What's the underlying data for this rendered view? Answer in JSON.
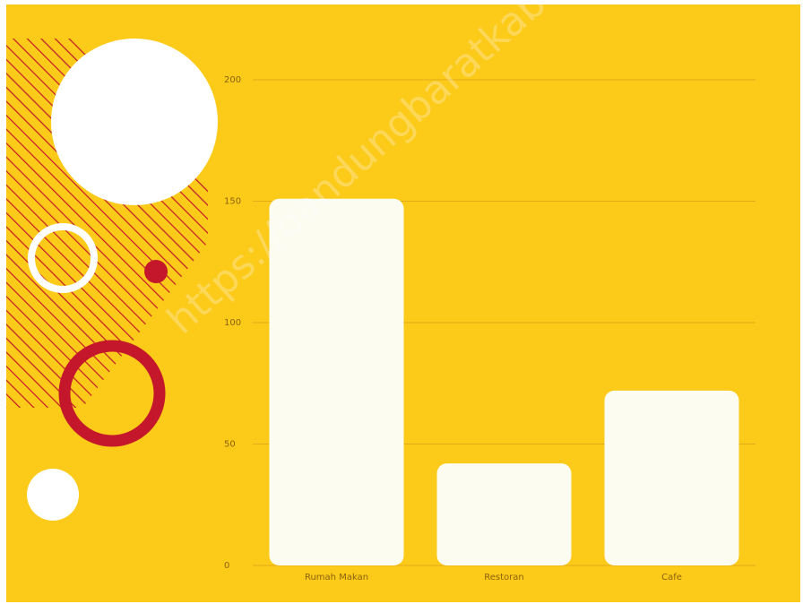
{
  "colors": {
    "background": "#fcca18",
    "bar": "#fdfcf1",
    "gridline": "#e5ab17",
    "axis_text": "#8a6210",
    "accent_red": "#c4172c",
    "white": "#ffffff"
  },
  "decorations": {
    "items": [
      "hatched-panel",
      "large-white-circle",
      "white-ring",
      "small-red-dot",
      "red-ring",
      "small-white-circle"
    ]
  },
  "watermark": "https://bandungbaratkab.bps.go.id",
  "chart_data": {
    "type": "bar",
    "title": "",
    "xlabel": "",
    "ylabel": "",
    "categories": [
      "Rumah Makan",
      "Restoran",
      "Cafe"
    ],
    "values": [
      151,
      42,
      72
    ],
    "ylim": [
      0,
      200
    ],
    "yticks": [
      0,
      50,
      100,
      150,
      200
    ],
    "grid": true,
    "legend": "none"
  }
}
